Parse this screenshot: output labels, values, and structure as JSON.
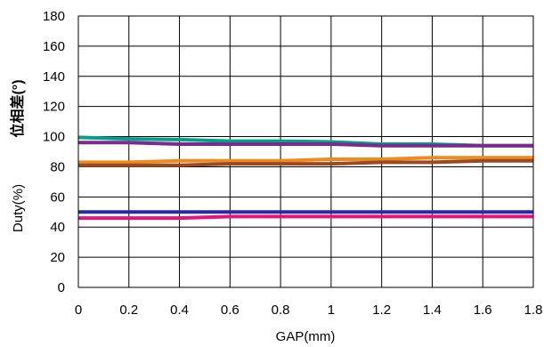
{
  "chart_data": {
    "type": "line",
    "xlabel": "GAP(mm)",
    "ylabel_top": "位相差(°)",
    "ylabel_bottom": "Duty(%)",
    "xlim": [
      0,
      1.8
    ],
    "ylim": [
      0,
      180
    ],
    "x_ticks": [
      "0",
      "0.2",
      "0.4",
      "0.6",
      "0.8",
      "1",
      "1.2",
      "1.4",
      "1.6",
      "1.8"
    ],
    "y_ticks": [
      "0",
      "20",
      "40",
      "60",
      "80",
      "100",
      "120",
      "140",
      "160",
      "180"
    ],
    "grid": true,
    "x": [
      0,
      0.2,
      0.4,
      0.6,
      0.8,
      1.0,
      1.2,
      1.4,
      1.6,
      1.8
    ],
    "series": [
      {
        "color": "#00a08a",
        "values": [
          99.5,
          98.5,
          98,
          97,
          97,
          96.5,
          95,
          95,
          94,
          94
        ]
      },
      {
        "color": "#7a2a8c",
        "values": [
          96,
          96,
          95,
          95,
          95,
          95,
          94,
          94,
          94,
          94
        ]
      },
      {
        "color": "#ef8a1e",
        "values": [
          83,
          83,
          84,
          84,
          84,
          85,
          85,
          86,
          86,
          86
        ]
      },
      {
        "color": "#9a4a22",
        "values": [
          81,
          81,
          81,
          82,
          82,
          82,
          83,
          83,
          84,
          84
        ]
      },
      {
        "color": "#2a2aa0",
        "values": [
          50,
          50,
          50,
          50,
          50,
          50,
          50,
          50,
          50,
          50
        ]
      },
      {
        "color": "#e0167a",
        "values": [
          46,
          46,
          46,
          47,
          47,
          47,
          47,
          47,
          47,
          47
        ]
      }
    ]
  }
}
